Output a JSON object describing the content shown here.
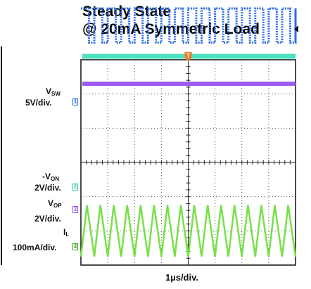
{
  "chart_data": {
    "type": "line",
    "title_lines": [
      "Steady State",
      "@ 20mA Symmetric Load"
    ],
    "xlabel": "1µs/div.",
    "grid": {
      "h_divisions": 8,
      "v_divisions": 6
    },
    "trigger_marker": "T",
    "channels": [
      {
        "id": "1",
        "name_main": "V",
        "name_sub": "SW",
        "scale": "5V/div.",
        "color": "#2b6be8",
        "waveform": "square",
        "period_div": 0.5,
        "high_div": 4.5,
        "low_div": 3.5
      },
      {
        "id": "2",
        "name_main": "-V",
        "name_sub": "ON",
        "scale": "2V/div.",
        "color": "#4fe0c0",
        "waveform": "dc",
        "level_div": 3.1
      },
      {
        "id": "3",
        "name_main": "V",
        "name_sub": "OP",
        "scale": "2V/div.",
        "color": "#9b59f0",
        "waveform": "dc",
        "level_div": 2.3
      },
      {
        "id": "4",
        "name_main": "I",
        "name_sub": "L",
        "scale": "100mA/div.",
        "color": "#79e04a",
        "waveform": "triangle",
        "period_div": 0.5,
        "high_div": -1.25,
        "low_div": -2.75
      }
    ]
  }
}
